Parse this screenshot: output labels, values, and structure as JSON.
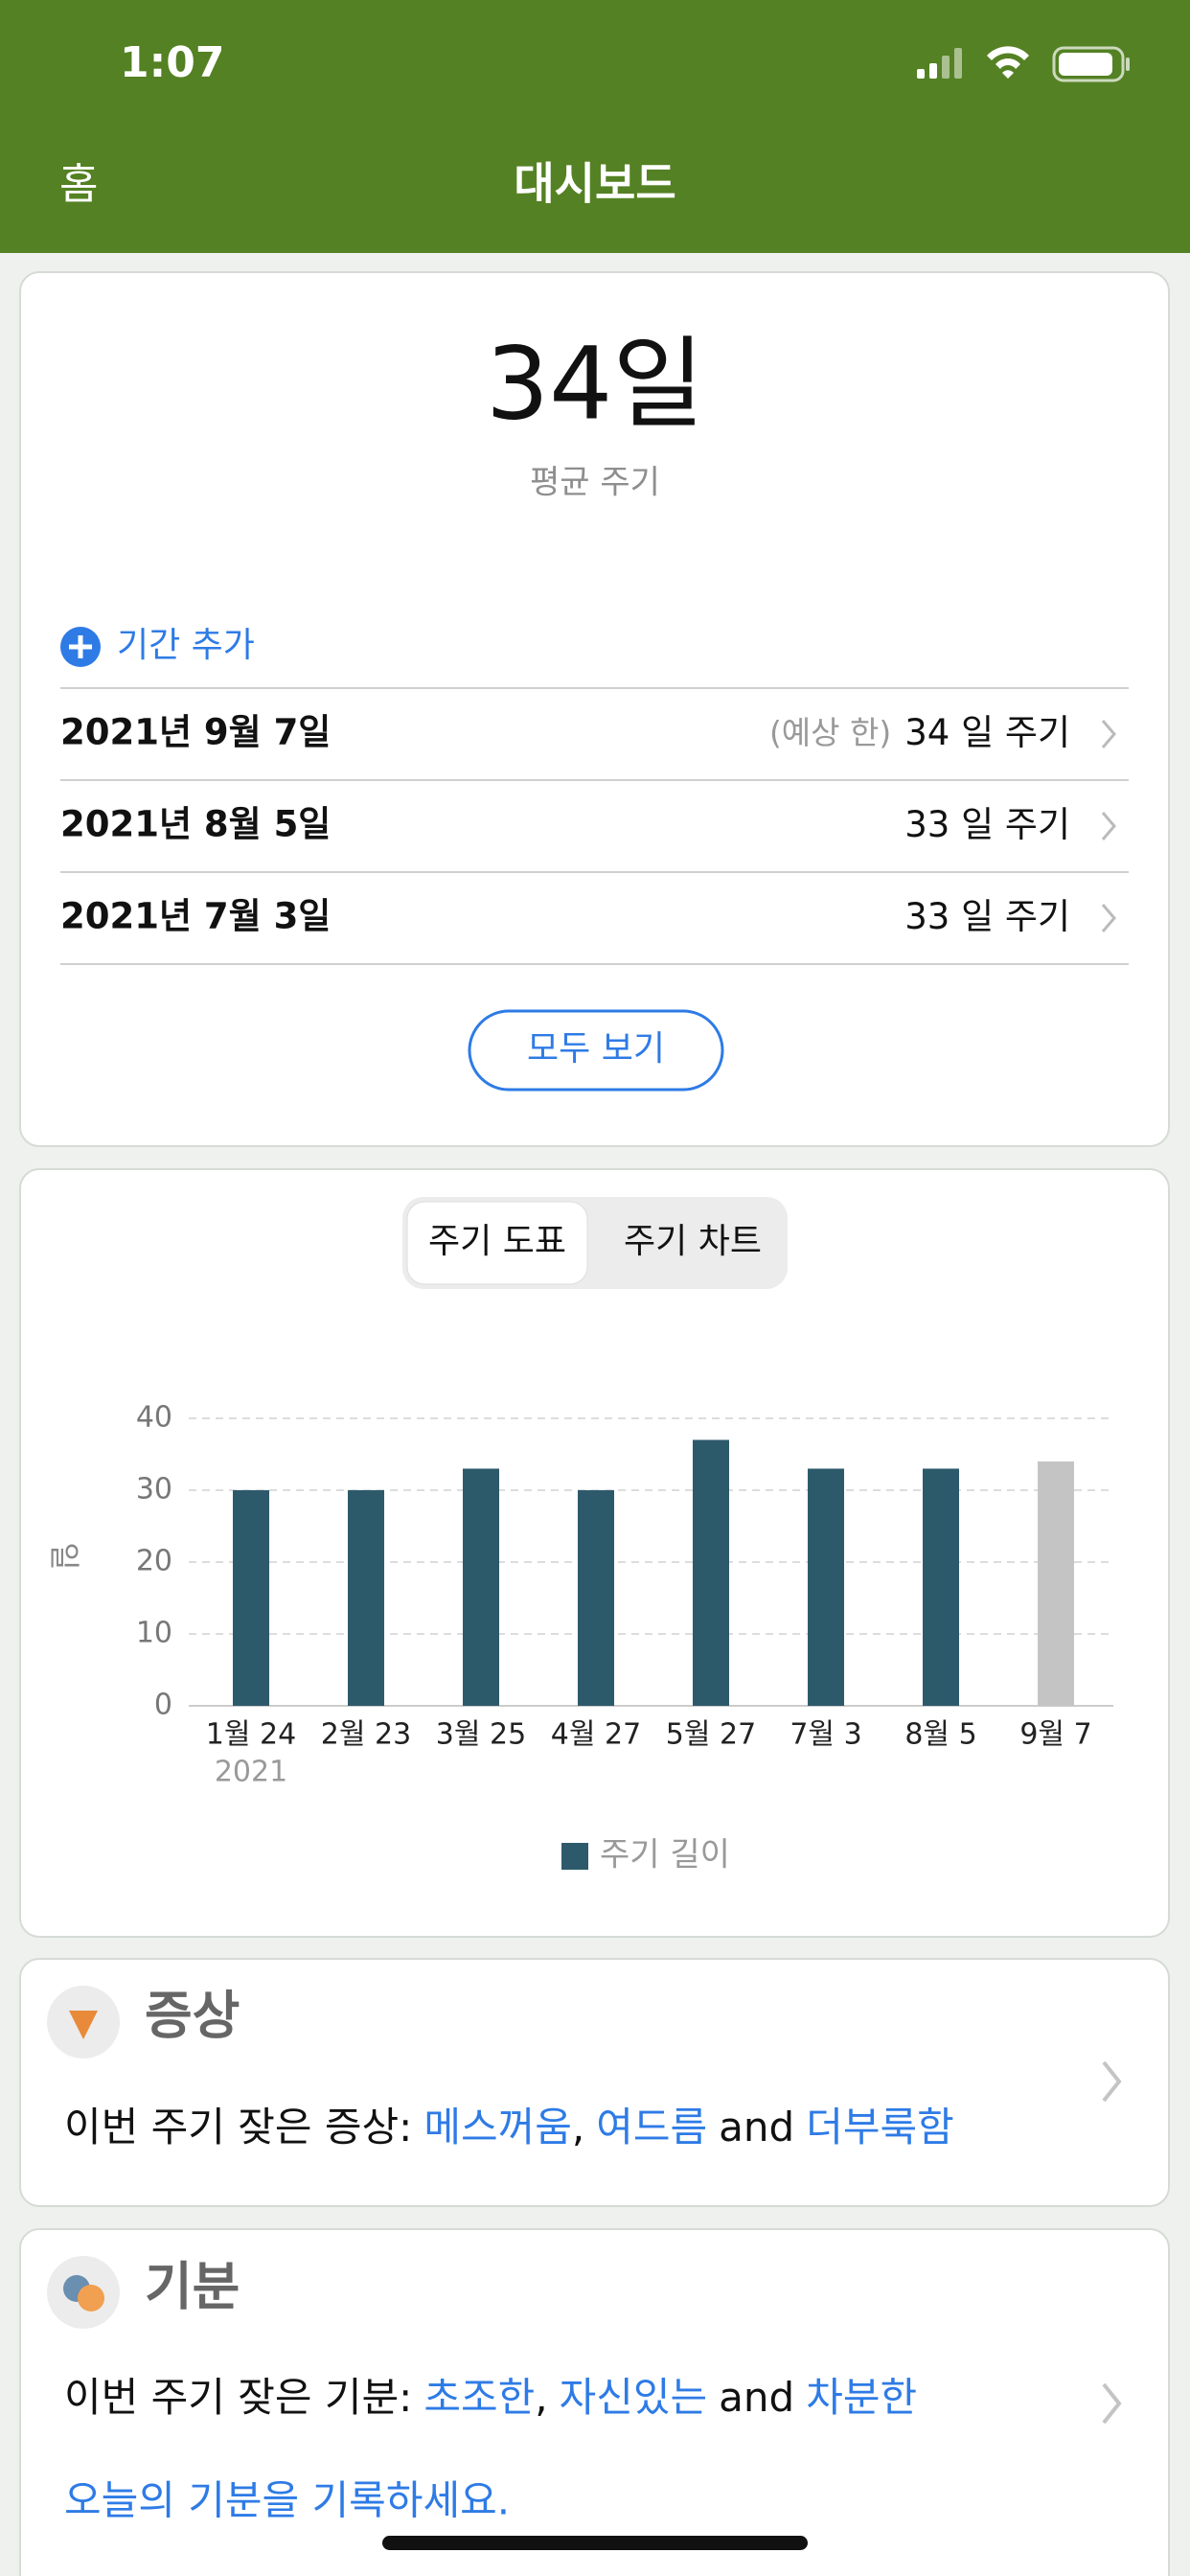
{
  "status_bar": {
    "time": "1:07"
  },
  "nav": {
    "back": "홈",
    "title": "대시보드"
  },
  "summary": {
    "average": "34일",
    "average_label": "평균 주기",
    "add_period": "기간 추가",
    "periods": [
      {
        "date": "2021년 9월 7일",
        "note": "(예상 한)",
        "cycle": "34 일 주기"
      },
      {
        "date": "2021년 8월 5일",
        "cycle": "33 일 주기"
      },
      {
        "date": "2021년 7월 3일",
        "cycle": "33 일 주기"
      }
    ],
    "view_all": "모두 보기"
  },
  "tabs": [
    "주기 도표",
    "주기 차트"
  ],
  "chart_data": {
    "type": "bar",
    "ylabel": "일",
    "year": "2021",
    "categories": [
      "1월 24",
      "2월 23",
      "3월 25",
      "4월 27",
      "5월 27",
      "7월 3",
      "8월 5",
      "9월 7"
    ],
    "series": [
      {
        "name": "주기 길이",
        "color": "#2d5a6b",
        "colors": [
          "#2d5a6b",
          "#2d5a6b",
          "#2d5a6b",
          "#2d5a6b",
          "#2d5a6b",
          "#2d5a6b",
          "#2d5a6b",
          "#c4c4c4"
        ],
        "values": [
          30,
          30,
          33,
          30,
          37,
          33,
          33,
          34
        ]
      }
    ],
    "ylim": [
      0,
      40
    ],
    "yticks": [
      0,
      10,
      20,
      30,
      40
    ],
    "grid": true,
    "legend": "bottom"
  },
  "symptoms": {
    "title": "증상",
    "label": "이번 주기 잦은 증상:",
    "items": [
      "메스꺼움",
      "여드름",
      "더부룩함"
    ],
    "separators": [
      ",",
      "and"
    ]
  },
  "mood": {
    "title": "기분",
    "label": "이번 주기 잦은 기분:",
    "items": [
      "초조한",
      "자신있는",
      "차분한"
    ],
    "separators": [
      ",",
      "and"
    ],
    "link": "오늘의 기분을 기록하세요."
  }
}
